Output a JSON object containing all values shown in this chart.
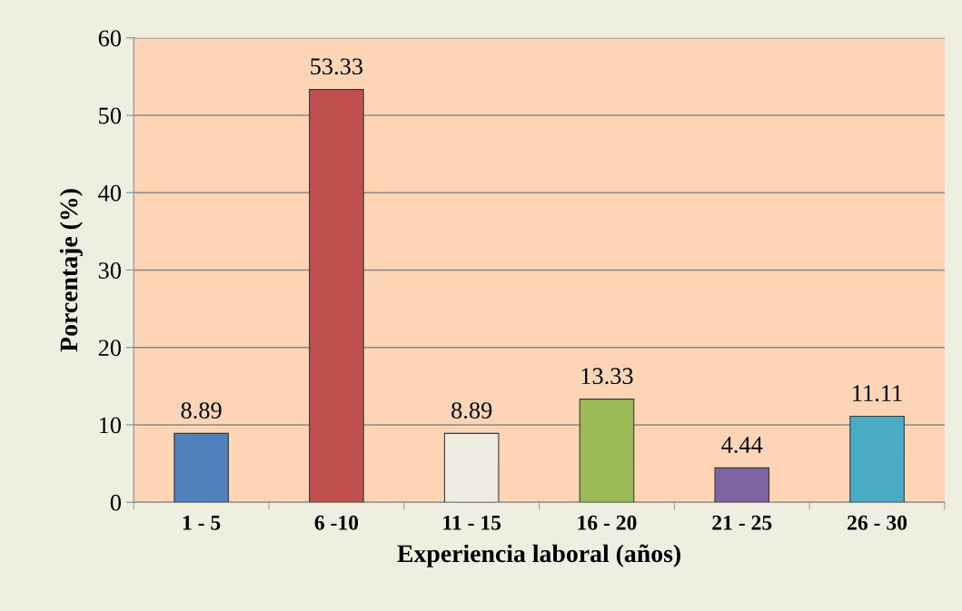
{
  "chart_data": {
    "type": "bar",
    "xlabel": "Experiencia laboral (años)",
    "ylabel": "Porcentaje (%)",
    "categories": [
      "1 - 5",
      "6 -10",
      "11 - 15",
      "16 - 20",
      "21 - 25",
      "26 - 30"
    ],
    "values": [
      8.89,
      53.33,
      8.89,
      13.33,
      4.44,
      11.11
    ],
    "colors": [
      "#4f81bd",
      "#c0504d",
      "#eeece1",
      "#9bbb59",
      "#8064a2",
      "#4bacc6"
    ],
    "ylim": [
      0,
      60
    ],
    "yticks": [
      0,
      10,
      20,
      30,
      40,
      50,
      60
    ],
    "grid": "y",
    "data_labels": true
  }
}
